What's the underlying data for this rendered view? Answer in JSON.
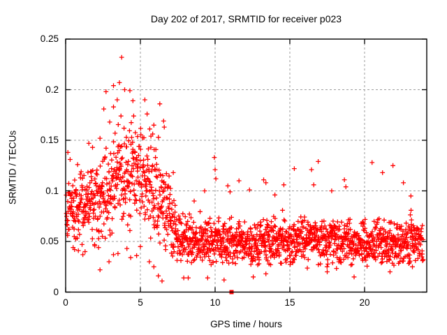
{
  "chart_data": {
    "type": "scatter",
    "title": "Day 202 of 2017, SRMTID for receiver p023",
    "xlabel": "GPS time / hours",
    "ylabel": "SRMTID / TECUs",
    "xlim": [
      0,
      24.16
    ],
    "ylim": [
      0,
      0.25
    ],
    "xticks": [
      0,
      5,
      10,
      15,
      20
    ],
    "xtick_labels": [
      "0",
      "5",
      "10",
      "15",
      "20"
    ],
    "yticks": [
      0,
      0.05,
      0.1,
      0.15,
      0.2,
      0.25
    ],
    "ytick_labels": [
      "0",
      "0.05",
      "0.1",
      "0.15",
      "0.2",
      "0.25"
    ],
    "grid": true,
    "legend": "none",
    "colors": {
      "marker": "#ff0000",
      "grid": "#9c9c9c",
      "axis": "#000000",
      "background": "#ffffff",
      "text": "#000000"
    },
    "marker": {
      "shape": "plus",
      "size": 7,
      "stroke_width": 1.3
    },
    "seed": 42,
    "points_per_hour": 76,
    "x_start": 0.03,
    "x_end": 23.93,
    "trend_keypoints": [
      [
        0,
        0.085,
        0.033
      ],
      [
        1,
        0.084,
        0.033
      ],
      [
        2,
        0.088,
        0.04
      ],
      [
        2.8,
        0.098,
        0.047
      ],
      [
        3.6,
        0.114,
        0.052
      ],
      [
        4.3,
        0.121,
        0.05
      ],
      [
        5.2,
        0.116,
        0.05
      ],
      [
        6,
        0.105,
        0.05
      ],
      [
        6.7,
        0.082,
        0.045
      ],
      [
        7.4,
        0.057,
        0.026
      ],
      [
        8.5,
        0.05,
        0.0225
      ],
      [
        12,
        0.048,
        0.0225
      ],
      [
        16,
        0.051,
        0.0225
      ],
      [
        20,
        0.049,
        0.0225
      ],
      [
        23.93,
        0.051,
        0.022
      ]
    ],
    "outliers_high": [
      [
        0.15,
        0.138
      ],
      [
        0.3,
        0.131
      ],
      [
        0.8,
        0.126
      ],
      [
        1.55,
        0.147
      ],
      [
        1.8,
        0.143
      ],
      [
        2.3,
        0.152
      ],
      [
        2.55,
        0.181
      ],
      [
        2.7,
        0.198
      ],
      [
        2.95,
        0.168
      ],
      [
        3.2,
        0.204
      ],
      [
        3.2,
        0.183
      ],
      [
        3.45,
        0.19
      ],
      [
        3.6,
        0.207
      ],
      [
        3.75,
        0.232
      ],
      [
        3.7,
        0.174
      ],
      [
        3.95,
        0.2
      ],
      [
        4.3,
        0.199
      ],
      [
        4.5,
        0.189
      ],
      [
        4.55,
        0.174
      ],
      [
        5.3,
        0.19
      ],
      [
        5.45,
        0.176
      ],
      [
        5.9,
        0.165
      ],
      [
        6.3,
        0.186
      ],
      [
        6.55,
        0.169
      ],
      [
        6.6,
        0.163
      ],
      [
        7.2,
        0.118
      ],
      [
        8.6,
        0.09
      ],
      [
        9.3,
        0.1
      ],
      [
        9.95,
        0.133
      ],
      [
        10.0,
        0.121
      ],
      [
        10.05,
        0.112
      ],
      [
        10.85,
        0.105
      ],
      [
        11.0,
        0.099
      ],
      [
        11.6,
        0.11
      ],
      [
        12.3,
        0.101
      ],
      [
        13.25,
        0.111
      ],
      [
        13.4,
        0.108
      ],
      [
        14.0,
        0.096
      ],
      [
        14.6,
        0.106
      ],
      [
        15.3,
        0.122
      ],
      [
        16.45,
        0.121
      ],
      [
        16.6,
        0.106
      ],
      [
        16.9,
        0.129
      ],
      [
        17.8,
        0.1
      ],
      [
        18.65,
        0.111
      ],
      [
        18.75,
        0.104
      ],
      [
        20.5,
        0.128
      ],
      [
        21.2,
        0.118
      ],
      [
        21.9,
        0.125
      ],
      [
        22.6,
        0.108
      ],
      [
        23.1,
        0.095
      ]
    ],
    "outliers_low": [
      [
        0.5,
        0.044
      ],
      [
        0.6,
        0.042
      ],
      [
        0.85,
        0.041
      ],
      [
        1.1,
        0.047
      ],
      [
        1.15,
        0.037
      ],
      [
        1.3,
        0.04
      ],
      [
        2.2,
        0.044
      ],
      [
        2.3,
        0.022
      ],
      [
        2.9,
        0.03
      ],
      [
        3.2,
        0.037
      ],
      [
        3.5,
        0.038
      ],
      [
        4.1,
        0.043
      ],
      [
        4.35,
        0.034
      ],
      [
        4.75,
        0.036
      ],
      [
        5.0,
        0.045
      ],
      [
        5.6,
        0.03
      ],
      [
        5.9,
        0.025
      ],
      [
        6.2,
        0.016
      ],
      [
        6.45,
        0.011
      ],
      [
        7.9,
        0.014
      ],
      [
        8.2,
        0.014
      ],
      [
        9.5,
        0.014
      ],
      [
        10.6,
        0.012
      ],
      [
        12.55,
        0.015
      ],
      [
        13.4,
        0.018
      ],
      [
        17.5,
        0.02
      ],
      [
        19.3,
        0.015
      ],
      [
        21.7,
        0.02
      ],
      [
        23.2,
        0.025
      ]
    ],
    "square_point": [
      11.1,
      0.0
    ]
  }
}
